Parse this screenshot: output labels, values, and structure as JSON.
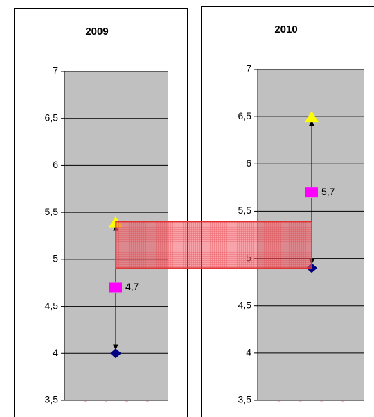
{
  "chart_data": [
    {
      "type": "range",
      "title": "2009",
      "ylim": [
        3.5,
        7
      ],
      "yticks": [
        {
          "value": 3.5,
          "label": "3,5"
        },
        4,
        {
          "value": 4.5,
          "label": "4,5"
        },
        5,
        {
          "value": 5.5,
          "label": "5,5"
        },
        6,
        {
          "value": 6.5,
          "label": "6,5"
        },
        7
      ],
      "grid": true,
      "series": [
        {
          "marker": "diamond",
          "color": "#000080",
          "values": [
            4
          ]
        },
        {
          "marker": "square",
          "color": "#ff00ff",
          "values": [
            4.7
          ],
          "value_labels": [
            "4,7"
          ]
        },
        {
          "marker": "triangle",
          "color": "#ffff00",
          "values": [
            5.4
          ]
        }
      ]
    },
    {
      "type": "range",
      "title": "2010",
      "ylim": [
        3.5,
        7
      ],
      "yticks": [
        {
          "value": 3.5,
          "label": "3,5"
        },
        4,
        {
          "value": 4.5,
          "label": "4,5"
        },
        5,
        {
          "value": 5.5,
          "label": "5,5"
        },
        6,
        {
          "value": 6.5,
          "label": "6,5"
        },
        7
      ],
      "grid": true,
      "series": [
        {
          "marker": "diamond",
          "color": "#000080",
          "values": [
            4.9
          ]
        },
        {
          "marker": "square",
          "color": "#ff00ff",
          "values": [
            5.7
          ],
          "value_labels": [
            "5,7"
          ]
        },
        {
          "marker": "triangle",
          "color": "#ffff00",
          "values": [
            6.5
          ]
        }
      ]
    }
  ]
}
